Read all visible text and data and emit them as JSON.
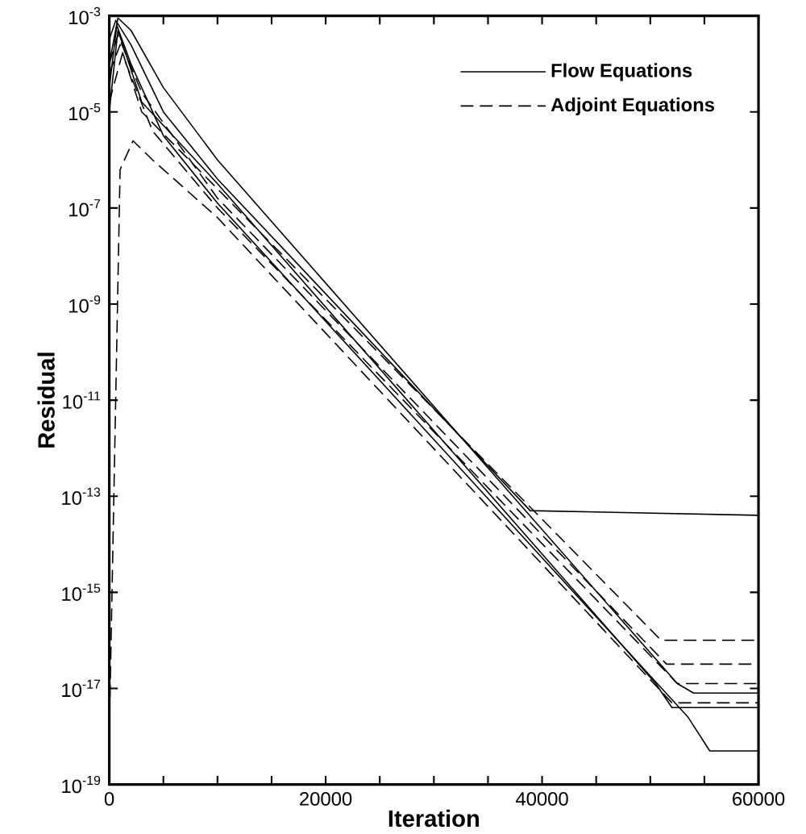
{
  "chart_data": {
    "type": "line",
    "xlabel": "Iteration",
    "ylabel": "Residual",
    "xlim": [
      0,
      60000
    ],
    "ylim": [
      1e-19,
      0.001
    ],
    "log": "y",
    "legend": "top right",
    "marker": "none",
    "grid": false,
    "xticks": [
      0,
      {
        "value": 5000,
        "label": null
      },
      {
        "value": 10000,
        "label": null
      },
      {
        "value": 15000,
        "label": null
      },
      20000,
      {
        "value": 25000,
        "label": null
      },
      {
        "value": 30000,
        "label": null
      },
      {
        "value": 35000,
        "label": null
      },
      40000,
      {
        "value": 45000,
        "label": null
      },
      {
        "value": 50000,
        "label": null
      },
      {
        "value": 55000,
        "label": null
      },
      60000
    ],
    "yticks": [
      {
        "value": 1e-19,
        "label": "10$^{-19}$"
      },
      {
        "value": 1e-17,
        "label": "10$^{-17}$"
      },
      {
        "value": 1e-15,
        "label": "10$^{-15}$"
      },
      {
        "value": 1e-13,
        "label": "10$^{-13}$"
      },
      {
        "value": 1e-11,
        "label": "10$^{-11}$"
      },
      {
        "value": 1e-09,
        "label": "10$^{-9}$"
      },
      {
        "value": 1e-07,
        "label": "10$^{-7}$"
      },
      {
        "value": 1e-05,
        "label": "10$^{-5}$"
      },
      {
        "value": 0.001,
        "label": "10$^{-3}$"
      }
    ],
    "series": [
      {
        "name": "Flow Equations",
        "color": "#000000",
        "line_style": "solid",
        "x": [
          0,
          800,
          2000,
          5000,
          10000,
          52500,
          54000,
          60000
        ],
        "values": [
          0.0001,
          0.0009,
          0.0005,
          3.2e-05,
          1e-06,
          1.26e-17,
          8e-18,
          8e-18
        ]
      },
      {
        "name": "Adjoint Equations",
        "color": "#000000",
        "line_style": "dashed",
        "x": [
          0,
          1000,
          2200,
          4000,
          10000,
          52000,
          60000
        ],
        "values": [
          1e-18,
          6.3e-07,
          2.5e-06,
          1e-06,
          6.3e-08,
          5e-18,
          5e-18
        ]
      },
      {
        "color": "#000000",
        "line_style": "solid",
        "x": [
          0,
          600,
          2000,
          5000,
          10000,
          38900,
          60000
        ],
        "values": [
          0.00032,
          0.0008,
          0.00025,
          1e-05,
          4e-07,
          5e-14,
          4e-14
        ]
      },
      {
        "color": "#000000",
        "line_style": "solid",
        "x": [
          0,
          700,
          2000,
          5000,
          10000,
          53500,
          55500,
          60000
        ],
        "values": [
          3.2e-05,
          0.00063,
          0.0001,
          3.2e-06,
          1.26e-07,
          2.5e-18,
          5e-19,
          5e-19
        ]
      },
      {
        "color": "#000000",
        "line_style": "solid",
        "x": [
          0,
          800,
          3000,
          10000,
          50500,
          52000,
          60000
        ],
        "values": [
          1e-05,
          0.0005,
          1.6e-05,
          3.2e-07,
          1.26e-17,
          4e-18,
          4e-18
        ]
      },
      {
        "color": "#000000",
        "line_style": "dashed",
        "x": [
          0,
          800,
          3000,
          10000,
          51500,
          60000
        ],
        "values": [
          0.0001,
          0.0004,
          2.5e-05,
          1.6e-07,
          3.2e-17,
          3.2e-17
        ]
      },
      {
        "color": "#000000",
        "line_style": "dashed",
        "x": [
          0,
          1000,
          3000,
          10000,
          51000,
          60000
        ],
        "values": [
          6.3e-05,
          0.00025,
          1e-05,
          2.5e-07,
          1e-16,
          1e-16
        ]
      },
      {
        "color": "#000000",
        "line_style": "dashed",
        "x": [
          0,
          1200,
          4000,
          10000,
          52500,
          60000
        ],
        "values": [
          1.6e-05,
          0.00016,
          4e-06,
          1e-07,
          1.26e-17,
          1.26e-17
        ]
      }
    ]
  }
}
